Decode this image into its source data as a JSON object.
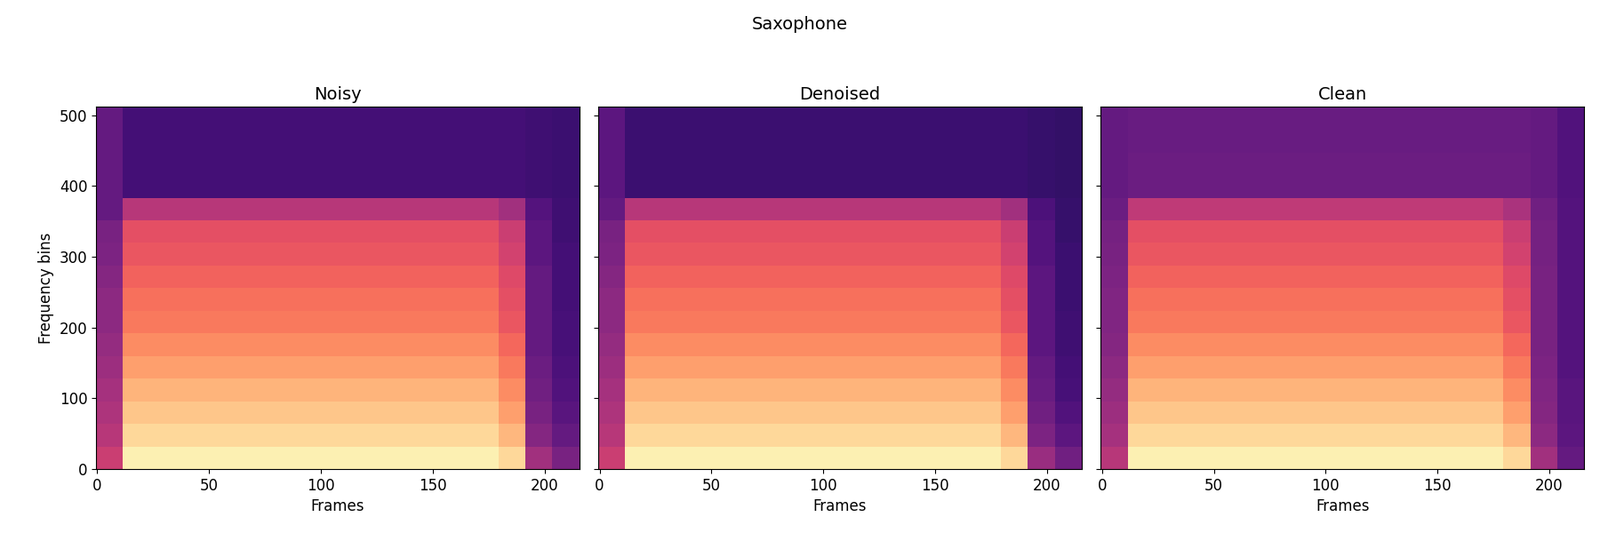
{
  "title": "Saxophone",
  "chart_data": [
    {
      "type": "heatmap",
      "title": "Noisy",
      "xlabel": "Frames",
      "ylabel": "Frequency bins",
      "xlim": [
        -0.5,
        215.5
      ],
      "ylim": [
        -0.5,
        512.5
      ],
      "xticks": [
        0,
        50,
        100,
        150,
        200
      ],
      "yticks": [
        0,
        100,
        200,
        300,
        400,
        500
      ],
      "color": "magma",
      "color_range": [
        0,
        1
      ],
      "x_edges": [
        -0.5,
        11.5,
        23.5,
        35.5,
        47.5,
        59.5,
        71.5,
        83.5,
        95.5,
        107.5,
        119.5,
        131.5,
        143.5,
        155.5,
        167.5,
        179.5,
        191.5,
        203.5,
        215.5
      ],
      "y_edges": [
        -0.5,
        31.5,
        63.5,
        95.5,
        127.5,
        159.5,
        191.5,
        223.5,
        255.5,
        287.5,
        319.5,
        351.5,
        383.5,
        415.5,
        447.5,
        479.5,
        512.5
      ],
      "cells": [
        [
          0.55,
          0.97,
          0.97,
          0.97,
          0.97,
          0.97,
          0.97,
          0.97,
          0.97,
          0.97,
          0.97,
          0.97,
          0.97,
          0.97,
          0.97,
          0.92,
          0.45,
          0.35
        ],
        [
          0.5,
          0.92,
          0.92,
          0.92,
          0.92,
          0.92,
          0.92,
          0.92,
          0.92,
          0.92,
          0.92,
          0.92,
          0.92,
          0.92,
          0.92,
          0.85,
          0.38,
          0.3
        ],
        [
          0.48,
          0.88,
          0.88,
          0.88,
          0.88,
          0.88,
          0.88,
          0.88,
          0.88,
          0.88,
          0.88,
          0.88,
          0.88,
          0.88,
          0.88,
          0.8,
          0.35,
          0.27
        ],
        [
          0.46,
          0.84,
          0.84,
          0.84,
          0.84,
          0.84,
          0.84,
          0.84,
          0.84,
          0.84,
          0.84,
          0.84,
          0.84,
          0.84,
          0.84,
          0.76,
          0.33,
          0.25
        ],
        [
          0.44,
          0.8,
          0.8,
          0.8,
          0.8,
          0.8,
          0.8,
          0.8,
          0.8,
          0.8,
          0.8,
          0.8,
          0.8,
          0.8,
          0.8,
          0.72,
          0.32,
          0.24
        ],
        [
          0.42,
          0.76,
          0.76,
          0.76,
          0.76,
          0.76,
          0.76,
          0.76,
          0.76,
          0.76,
          0.76,
          0.76,
          0.76,
          0.76,
          0.76,
          0.68,
          0.3,
          0.23
        ],
        [
          0.4,
          0.72,
          0.72,
          0.72,
          0.72,
          0.72,
          0.72,
          0.72,
          0.72,
          0.72,
          0.72,
          0.72,
          0.72,
          0.72,
          0.72,
          0.64,
          0.3,
          0.23
        ],
        [
          0.4,
          0.7,
          0.7,
          0.7,
          0.7,
          0.7,
          0.7,
          0.7,
          0.7,
          0.7,
          0.7,
          0.7,
          0.7,
          0.7,
          0.7,
          0.62,
          0.3,
          0.22
        ],
        [
          0.38,
          0.67,
          0.67,
          0.67,
          0.67,
          0.67,
          0.67,
          0.67,
          0.67,
          0.67,
          0.67,
          0.67,
          0.67,
          0.67,
          0.67,
          0.6,
          0.3,
          0.22
        ],
        [
          0.36,
          0.64,
          0.64,
          0.64,
          0.64,
          0.64,
          0.64,
          0.64,
          0.64,
          0.64,
          0.64,
          0.64,
          0.64,
          0.64,
          0.64,
          0.57,
          0.28,
          0.22
        ],
        [
          0.35,
          0.62,
          0.62,
          0.62,
          0.62,
          0.62,
          0.62,
          0.62,
          0.62,
          0.62,
          0.62,
          0.62,
          0.62,
          0.62,
          0.62,
          0.55,
          0.28,
          0.21
        ],
        [
          0.3,
          0.5,
          0.5,
          0.5,
          0.5,
          0.5,
          0.5,
          0.5,
          0.5,
          0.5,
          0.5,
          0.5,
          0.5,
          0.5,
          0.5,
          0.45,
          0.26,
          0.21
        ],
        [
          0.3,
          0.22,
          0.22,
          0.22,
          0.22,
          0.22,
          0.22,
          0.22,
          0.22,
          0.22,
          0.22,
          0.22,
          0.22,
          0.22,
          0.22,
          0.22,
          0.21,
          0.2
        ],
        [
          0.3,
          0.22,
          0.22,
          0.22,
          0.22,
          0.22,
          0.22,
          0.22,
          0.22,
          0.22,
          0.22,
          0.22,
          0.22,
          0.22,
          0.22,
          0.22,
          0.21,
          0.2
        ],
        [
          0.3,
          0.22,
          0.22,
          0.22,
          0.22,
          0.22,
          0.22,
          0.22,
          0.22,
          0.22,
          0.22,
          0.22,
          0.22,
          0.22,
          0.22,
          0.22,
          0.21,
          0.2
        ],
        [
          0.3,
          0.22,
          0.22,
          0.22,
          0.22,
          0.22,
          0.22,
          0.22,
          0.22,
          0.22,
          0.22,
          0.22,
          0.22,
          0.22,
          0.22,
          0.22,
          0.21,
          0.2
        ]
      ]
    },
    {
      "type": "heatmap",
      "title": "Denoised",
      "xlabel": "Frames",
      "tick_labels": "x",
      "xlim": [
        -0.5,
        215.5
      ],
      "ylim": [
        -0.5,
        512.5
      ],
      "xticks": [
        0,
        50,
        100,
        150,
        200
      ],
      "yticks": [
        0,
        100,
        200,
        300,
        400,
        500
      ],
      "color": "magma",
      "color_range": [
        0,
        1
      ],
      "x_edges": [
        -0.5,
        11.5,
        23.5,
        35.5,
        47.5,
        59.5,
        71.5,
        83.5,
        95.5,
        107.5,
        119.5,
        131.5,
        143.5,
        155.5,
        167.5,
        179.5,
        191.5,
        203.5,
        215.5
      ],
      "y_edges": [
        -0.5,
        31.5,
        63.5,
        95.5,
        127.5,
        159.5,
        191.5,
        223.5,
        255.5,
        287.5,
        319.5,
        351.5,
        383.5,
        415.5,
        447.5,
        479.5,
        512.5
      ],
      "cells": [
        [
          0.55,
          0.97,
          0.97,
          0.97,
          0.97,
          0.97,
          0.97,
          0.97,
          0.97,
          0.97,
          0.97,
          0.97,
          0.97,
          0.97,
          0.97,
          0.92,
          0.43,
          0.33
        ],
        [
          0.5,
          0.92,
          0.92,
          0.92,
          0.92,
          0.92,
          0.92,
          0.92,
          0.92,
          0.92,
          0.92,
          0.92,
          0.92,
          0.92,
          0.92,
          0.85,
          0.36,
          0.28
        ],
        [
          0.48,
          0.88,
          0.88,
          0.88,
          0.88,
          0.88,
          0.88,
          0.88,
          0.88,
          0.88,
          0.88,
          0.88,
          0.88,
          0.88,
          0.88,
          0.8,
          0.33,
          0.25
        ],
        [
          0.46,
          0.84,
          0.84,
          0.84,
          0.84,
          0.84,
          0.84,
          0.84,
          0.84,
          0.84,
          0.84,
          0.84,
          0.84,
          0.84,
          0.84,
          0.76,
          0.31,
          0.23
        ],
        [
          0.44,
          0.8,
          0.8,
          0.8,
          0.8,
          0.8,
          0.8,
          0.8,
          0.8,
          0.8,
          0.8,
          0.8,
          0.8,
          0.8,
          0.8,
          0.72,
          0.3,
          0.22
        ],
        [
          0.42,
          0.76,
          0.76,
          0.76,
          0.76,
          0.76,
          0.76,
          0.76,
          0.76,
          0.76,
          0.76,
          0.76,
          0.76,
          0.76,
          0.76,
          0.68,
          0.28,
          0.21
        ],
        [
          0.4,
          0.72,
          0.72,
          0.72,
          0.72,
          0.72,
          0.72,
          0.72,
          0.72,
          0.72,
          0.72,
          0.72,
          0.72,
          0.72,
          0.72,
          0.64,
          0.28,
          0.21
        ],
        [
          0.4,
          0.7,
          0.7,
          0.7,
          0.7,
          0.7,
          0.7,
          0.7,
          0.7,
          0.7,
          0.7,
          0.7,
          0.7,
          0.7,
          0.7,
          0.62,
          0.28,
          0.2
        ],
        [
          0.38,
          0.67,
          0.67,
          0.67,
          0.67,
          0.67,
          0.67,
          0.67,
          0.67,
          0.67,
          0.67,
          0.67,
          0.67,
          0.67,
          0.67,
          0.6,
          0.28,
          0.2
        ],
        [
          0.36,
          0.64,
          0.64,
          0.64,
          0.64,
          0.64,
          0.64,
          0.64,
          0.64,
          0.64,
          0.64,
          0.64,
          0.64,
          0.64,
          0.64,
          0.57,
          0.26,
          0.2
        ],
        [
          0.35,
          0.62,
          0.62,
          0.62,
          0.62,
          0.62,
          0.62,
          0.62,
          0.62,
          0.62,
          0.62,
          0.62,
          0.62,
          0.62,
          0.62,
          0.55,
          0.26,
          0.19
        ],
        [
          0.3,
          0.5,
          0.5,
          0.5,
          0.5,
          0.5,
          0.5,
          0.5,
          0.5,
          0.5,
          0.5,
          0.5,
          0.5,
          0.5,
          0.5,
          0.45,
          0.24,
          0.19
        ],
        [
          0.28,
          0.2,
          0.2,
          0.2,
          0.2,
          0.2,
          0.2,
          0.2,
          0.2,
          0.2,
          0.2,
          0.2,
          0.2,
          0.2,
          0.2,
          0.2,
          0.19,
          0.18
        ],
        [
          0.28,
          0.2,
          0.2,
          0.2,
          0.2,
          0.2,
          0.2,
          0.2,
          0.2,
          0.2,
          0.2,
          0.2,
          0.2,
          0.2,
          0.2,
          0.2,
          0.19,
          0.18
        ],
        [
          0.28,
          0.2,
          0.2,
          0.2,
          0.2,
          0.2,
          0.2,
          0.2,
          0.2,
          0.2,
          0.2,
          0.2,
          0.2,
          0.2,
          0.2,
          0.2,
          0.19,
          0.18
        ],
        [
          0.28,
          0.2,
          0.2,
          0.2,
          0.2,
          0.2,
          0.2,
          0.2,
          0.2,
          0.2,
          0.2,
          0.2,
          0.2,
          0.2,
          0.2,
          0.2,
          0.19,
          0.18
        ]
      ]
    },
    {
      "type": "heatmap",
      "title": "Clean",
      "xlabel": "Frames",
      "tick_labels": "x",
      "xlim": [
        -0.5,
        215.5
      ],
      "ylim": [
        -0.5,
        512.5
      ],
      "xticks": [
        0,
        50,
        100,
        150,
        200
      ],
      "yticks": [
        0,
        100,
        200,
        300,
        400,
        500
      ],
      "color": "magma",
      "color_range": [
        0,
        1
      ],
      "x_edges": [
        -0.5,
        11.5,
        23.5,
        35.5,
        47.5,
        59.5,
        71.5,
        83.5,
        95.5,
        107.5,
        119.5,
        131.5,
        143.5,
        155.5,
        167.5,
        179.5,
        191.5,
        203.5,
        215.5
      ],
      "y_edges": [
        -0.5,
        31.5,
        63.5,
        95.5,
        127.5,
        159.5,
        191.5,
        223.5,
        255.5,
        287.5,
        319.5,
        351.5,
        383.5,
        415.5,
        447.5,
        479.5,
        512.5
      ],
      "cells": [
        [
          0.5,
          0.97,
          0.97,
          0.97,
          0.97,
          0.97,
          0.97,
          0.97,
          0.97,
          0.97,
          0.97,
          0.97,
          0.97,
          0.97,
          0.97,
          0.92,
          0.45,
          0.3
        ],
        [
          0.46,
          0.92,
          0.92,
          0.92,
          0.92,
          0.92,
          0.92,
          0.92,
          0.92,
          0.92,
          0.92,
          0.92,
          0.92,
          0.92,
          0.92,
          0.85,
          0.4,
          0.28
        ],
        [
          0.44,
          0.88,
          0.88,
          0.88,
          0.88,
          0.88,
          0.88,
          0.88,
          0.88,
          0.88,
          0.88,
          0.88,
          0.88,
          0.88,
          0.88,
          0.8,
          0.38,
          0.27
        ],
        [
          0.42,
          0.84,
          0.84,
          0.84,
          0.84,
          0.84,
          0.84,
          0.84,
          0.84,
          0.84,
          0.84,
          0.84,
          0.84,
          0.84,
          0.84,
          0.76,
          0.37,
          0.27
        ],
        [
          0.4,
          0.8,
          0.8,
          0.8,
          0.8,
          0.8,
          0.8,
          0.8,
          0.8,
          0.8,
          0.8,
          0.8,
          0.8,
          0.8,
          0.8,
          0.72,
          0.36,
          0.26
        ],
        [
          0.38,
          0.76,
          0.76,
          0.76,
          0.76,
          0.76,
          0.76,
          0.76,
          0.76,
          0.76,
          0.76,
          0.76,
          0.76,
          0.76,
          0.76,
          0.68,
          0.35,
          0.26
        ],
        [
          0.37,
          0.72,
          0.72,
          0.72,
          0.72,
          0.72,
          0.72,
          0.72,
          0.72,
          0.72,
          0.72,
          0.72,
          0.72,
          0.72,
          0.72,
          0.64,
          0.35,
          0.26
        ],
        [
          0.37,
          0.7,
          0.7,
          0.7,
          0.7,
          0.7,
          0.7,
          0.7,
          0.7,
          0.7,
          0.7,
          0.7,
          0.7,
          0.7,
          0.7,
          0.62,
          0.35,
          0.26
        ],
        [
          0.36,
          0.67,
          0.67,
          0.67,
          0.67,
          0.67,
          0.67,
          0.67,
          0.67,
          0.67,
          0.67,
          0.67,
          0.67,
          0.67,
          0.67,
          0.6,
          0.35,
          0.26
        ],
        [
          0.35,
          0.64,
          0.64,
          0.64,
          0.64,
          0.64,
          0.64,
          0.64,
          0.64,
          0.64,
          0.64,
          0.64,
          0.64,
          0.64,
          0.64,
          0.57,
          0.34,
          0.26
        ],
        [
          0.34,
          0.62,
          0.62,
          0.62,
          0.62,
          0.62,
          0.62,
          0.62,
          0.62,
          0.62,
          0.62,
          0.62,
          0.62,
          0.62,
          0.62,
          0.55,
          0.34,
          0.26
        ],
        [
          0.32,
          0.52,
          0.52,
          0.52,
          0.52,
          0.52,
          0.52,
          0.52,
          0.52,
          0.52,
          0.52,
          0.52,
          0.52,
          0.52,
          0.52,
          0.47,
          0.33,
          0.26
        ],
        [
          0.3,
          0.32,
          0.32,
          0.32,
          0.32,
          0.32,
          0.32,
          0.32,
          0.32,
          0.32,
          0.32,
          0.32,
          0.32,
          0.32,
          0.32,
          0.32,
          0.3,
          0.25
        ],
        [
          0.3,
          0.32,
          0.32,
          0.32,
          0.32,
          0.32,
          0.32,
          0.32,
          0.32,
          0.32,
          0.32,
          0.32,
          0.32,
          0.32,
          0.32,
          0.32,
          0.3,
          0.25
        ],
        [
          0.3,
          0.31,
          0.31,
          0.31,
          0.31,
          0.31,
          0.31,
          0.31,
          0.31,
          0.31,
          0.31,
          0.31,
          0.31,
          0.31,
          0.31,
          0.31,
          0.3,
          0.25
        ],
        [
          0.3,
          0.31,
          0.31,
          0.31,
          0.31,
          0.31,
          0.31,
          0.31,
          0.31,
          0.31,
          0.31,
          0.31,
          0.31,
          0.31,
          0.31,
          0.31,
          0.3,
          0.25
        ]
      ]
    }
  ]
}
